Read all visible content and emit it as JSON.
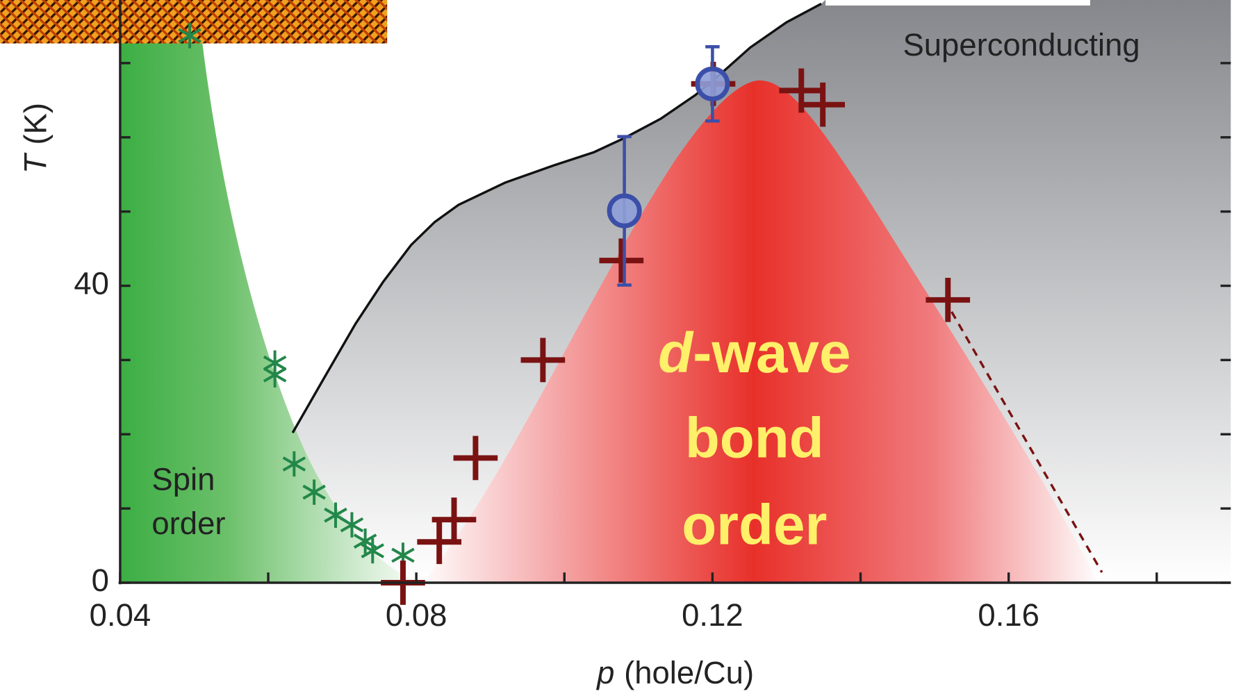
{
  "chart_data": {
    "type": "scatter",
    "x_label": {
      "symbol": "p",
      "unit": "(hole/Cu)"
    },
    "y_label": {
      "symbol": "T",
      "unit": "(K)"
    },
    "xlim": [
      0.04,
      0.19
    ],
    "ylim": [
      0,
      78.5
    ],
    "xticks": [
      0.04,
      0.08,
      0.12,
      0.16
    ],
    "xminor_ticks": [
      0.06,
      0.1,
      0.14,
      0.18
    ],
    "yticks": [
      0,
      40
    ],
    "yminor_ticks": [
      10,
      20,
      30,
      50,
      60,
      70
    ],
    "annotations": {
      "superconducting": "Superconducting",
      "spin_order": [
        "Spin",
        "order"
      ],
      "bond_order": {
        "italic": "d",
        "rest": "-wave",
        "lines": [
          "bond",
          "order"
        ]
      }
    },
    "series": [
      {
        "style": "line",
        "color": "#111111",
        "x": [
          0.0633,
          0.0675,
          0.0718,
          0.0755,
          0.0793,
          0.0825,
          0.0857,
          0.092,
          0.0985,
          0.104,
          0.1081,
          0.113,
          0.1177,
          0.1215,
          0.1251,
          0.13,
          0.1347
        ],
        "values": [
          20.2,
          27.5,
          34.9,
          40.5,
          45.5,
          48.6,
          50.9,
          53.9,
          56.2,
          58.0,
          59.9,
          62.5,
          65.7,
          68.9,
          72.1,
          75.5,
          78.0
        ]
      },
      {
        "style": "dashed",
        "color": "#7a1212",
        "x": [
          0.1523,
          0.1726
        ],
        "values": [
          36.5,
          1.4
        ]
      },
      {
        "style": "star",
        "color": "#23874a",
        "x": [
          0.0494,
          0.0609,
          0.0609,
          0.0635,
          0.0662,
          0.0691,
          0.0713,
          0.0731,
          0.0741,
          0.0782
        ],
        "values": [
          73.7,
          29.6,
          28.0,
          16.0,
          12.2,
          9.1,
          7.8,
          5.6,
          4.3,
          3.7
        ]
      },
      {
        "style": "cross",
        "color": "#7a1212",
        "x": [
          0.0782,
          0.0831,
          0.0851,
          0.088,
          0.0971,
          0.1077,
          0.1201,
          0.132,
          0.1349,
          0.1518
        ],
        "values": [
          0,
          5.5,
          8.5,
          16.8,
          30,
          43.4,
          67.2,
          66.3,
          64.4,
          38.1
        ]
      },
      {
        "style": "circle",
        "color": "#3c4fa8",
        "fill": "#8e9fd8",
        "x": [
          0.1081,
          0.12
        ],
        "values": [
          50.1,
          67.2
        ],
        "errors": [
          10,
          5
        ]
      }
    ]
  }
}
